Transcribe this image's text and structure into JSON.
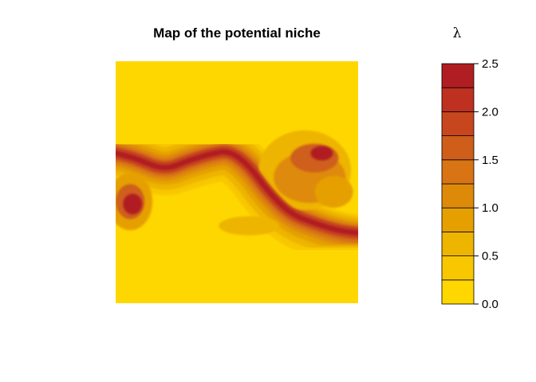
{
  "chart_data": {
    "type": "heatmap",
    "title": "Map of the potential niche",
    "legend_title": "λ",
    "value_range": [
      0,
      2.5
    ],
    "legend_ticks": [
      "0.0",
      "0.5",
      "1.0",
      "1.5",
      "2.0",
      "2.5"
    ],
    "legend_tick_values": [
      0,
      0.5,
      1.0,
      1.5,
      2.0,
      2.5
    ],
    "color_levels": [
      "#FFD700",
      "#F8C700",
      "#EDB400",
      "#E5A000",
      "#DE8A09",
      "#D87414",
      "#CF5E1A",
      "#C7461E",
      "#BE3020",
      "#B01E22"
    ],
    "background_color": "#FFD700",
    "legend_placement": "right",
    "axes_shown": false,
    "high_value_band": {
      "description_points": [
        [
          0.0,
          0.38
        ],
        [
          0.08,
          0.4
        ],
        [
          0.2,
          0.45
        ],
        [
          0.3,
          0.41
        ],
        [
          0.4,
          0.38
        ],
        [
          0.47,
          0.37
        ],
        [
          0.55,
          0.43
        ],
        [
          0.63,
          0.54
        ],
        [
          0.72,
          0.63
        ],
        [
          0.82,
          0.67
        ],
        [
          0.92,
          0.7
        ],
        [
          1.0,
          0.71
        ]
      ],
      "peak_value": 2.5
    }
  }
}
